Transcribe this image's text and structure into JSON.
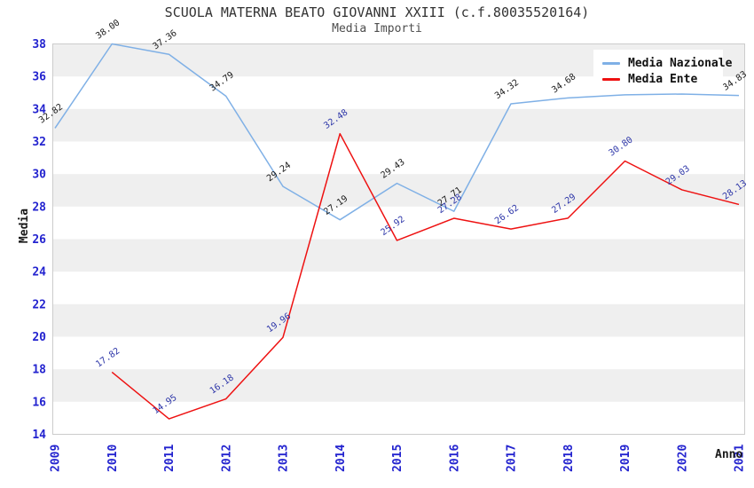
{
  "chart_data": {
    "type": "line",
    "title": "SCUOLA MATERNA BEATO GIOVANNI XXIII (c.f.80035520164)",
    "subtitle": "Media Importi",
    "xlabel": "Anno",
    "ylabel": "Media",
    "x_categories": [
      "2009",
      "2010",
      "2011",
      "2012",
      "2013",
      "2014",
      "2015",
      "2016",
      "2017",
      "2018",
      "2019",
      "2020",
      "2021"
    ],
    "ylim": [
      14,
      38
    ],
    "ytick_step": 2,
    "grid": "alternating-horizontal-bands",
    "band_fill": "#efefef",
    "plot_border_color": "#cccccc",
    "axis_tick_color": "#2323cf",
    "legend_position": "top-right",
    "series": [
      {
        "name": "Media Nazionale",
        "color": "#7fb0e6",
        "label_color": "#1a1a1a",
        "points": [
          {
            "x": "2009",
            "y": 32.82,
            "label": "32.82"
          },
          {
            "x": "2010",
            "y": 38.0,
            "label": "38.00"
          },
          {
            "x": "2011",
            "y": 37.36,
            "label": "37.36"
          },
          {
            "x": "2012",
            "y": 34.79,
            "label": "34.79"
          },
          {
            "x": "2013",
            "y": 29.24,
            "label": "29.24"
          },
          {
            "x": "2014",
            "y": 27.19,
            "label": "27.19"
          },
          {
            "x": "2015",
            "y": 29.43,
            "label": "29.43"
          },
          {
            "x": "2016",
            "y": 27.71,
            "label": "27.71"
          },
          {
            "x": "2017",
            "y": 34.32,
            "label": "34.32"
          },
          {
            "x": "2018",
            "y": 34.68,
            "label": "34.68"
          },
          {
            "x": "2019",
            "y": 34.87,
            "label": ""
          },
          {
            "x": "2020",
            "y": 34.92,
            "label": ""
          },
          {
            "x": "2021",
            "y": 34.83,
            "label": "34.83"
          }
        ]
      },
      {
        "name": "Media Ente",
        "color": "#ee1111",
        "label_color": "#2c35a8",
        "points": [
          {
            "x": "2010",
            "y": 17.82,
            "label": "17.82"
          },
          {
            "x": "2011",
            "y": 14.95,
            "label": "14.95"
          },
          {
            "x": "2012",
            "y": 16.18,
            "label": "16.18"
          },
          {
            "x": "2013",
            "y": 19.96,
            "label": "19.96"
          },
          {
            "x": "2014",
            "y": 32.48,
            "label": "32.48"
          },
          {
            "x": "2015",
            "y": 25.92,
            "label": "25.92"
          },
          {
            "x": "2016",
            "y": 27.28,
            "label": "27.28"
          },
          {
            "x": "2017",
            "y": 26.62,
            "label": "26.62"
          },
          {
            "x": "2018",
            "y": 27.29,
            "label": "27.29"
          },
          {
            "x": "2019",
            "y": 30.8,
            "label": "30.80"
          },
          {
            "x": "2020",
            "y": 29.03,
            "label": "29.03"
          },
          {
            "x": "2021",
            "y": 28.13,
            "label": "28.13"
          }
        ]
      }
    ]
  }
}
